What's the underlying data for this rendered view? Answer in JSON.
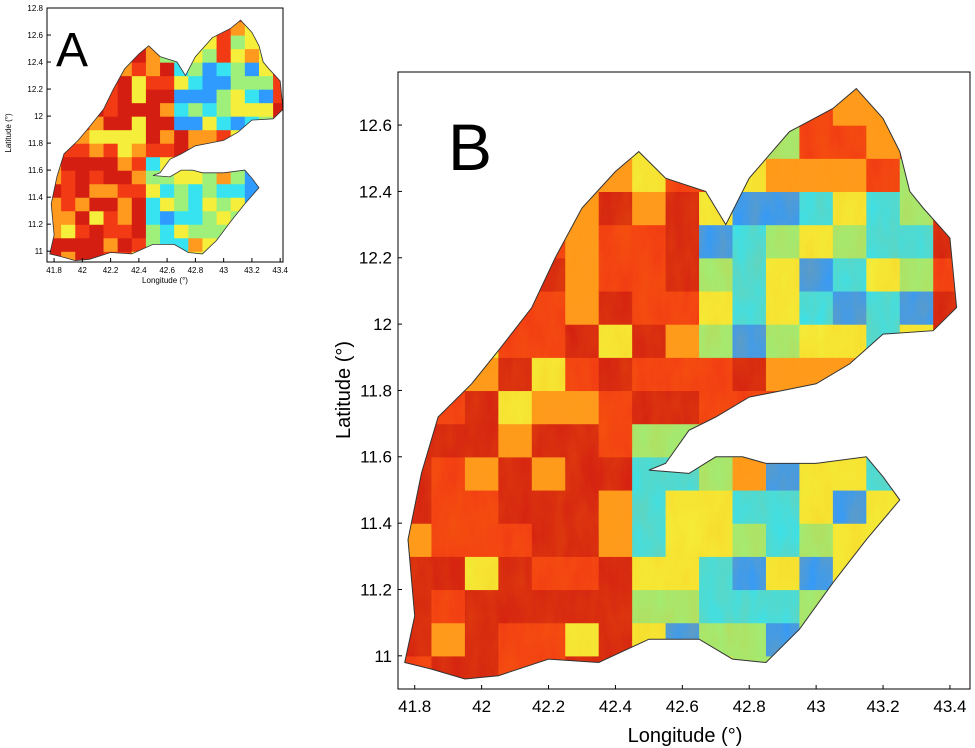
{
  "panels": [
    {
      "id": "A",
      "letter": "A",
      "xlabel": "Longitude (°)",
      "ylabel": "Latitude (°)",
      "xlim": [
        41.75,
        43.42
      ],
      "ylim": [
        10.92,
        12.8
      ],
      "xticks": [
        "41.8",
        "42",
        "42.2",
        "42.4",
        "42.6",
        "42.8",
        "43",
        "43.2",
        "43.4"
      ],
      "yticks": [
        "11",
        "11.2",
        "11.4",
        "11.6",
        "11.8",
        "12",
        "12.2",
        "12.4",
        "12.6",
        "12.8"
      ]
    },
    {
      "id": "B",
      "letter": "B",
      "xlabel": "Longitude (°)",
      "ylabel": "Latitude (°)",
      "xlim": [
        41.75,
        43.46
      ],
      "ylim": [
        10.9,
        12.76
      ],
      "xticks": [
        "41.8",
        "42",
        "42.2",
        "42.4",
        "42.6",
        "42.8",
        "43",
        "43.2",
        "43.4"
      ],
      "yticks": [
        "11",
        "11.2",
        "11.4",
        "11.6",
        "11.8",
        "12",
        "12.2",
        "12.4",
        "12.6"
      ]
    }
  ],
  "chart_data": {
    "type": "heatmap",
    "description_units": "gridded raster over Djibouti, colormap jet-like (blue=low, red=high)",
    "cell_size_deg": 0.1,
    "colors": {
      "low": "#2f9bff",
      "cyan": "#37e3f0",
      "green": "#9ef07a",
      "yellow": "#f5ee3a",
      "orange": "#ff9a1f",
      "red": "#f23a14",
      "darkred": "#d41e12"
    },
    "values_note": "values read approximately by colour, scale 0 (blue) to 1 (dark red)"
  }
}
